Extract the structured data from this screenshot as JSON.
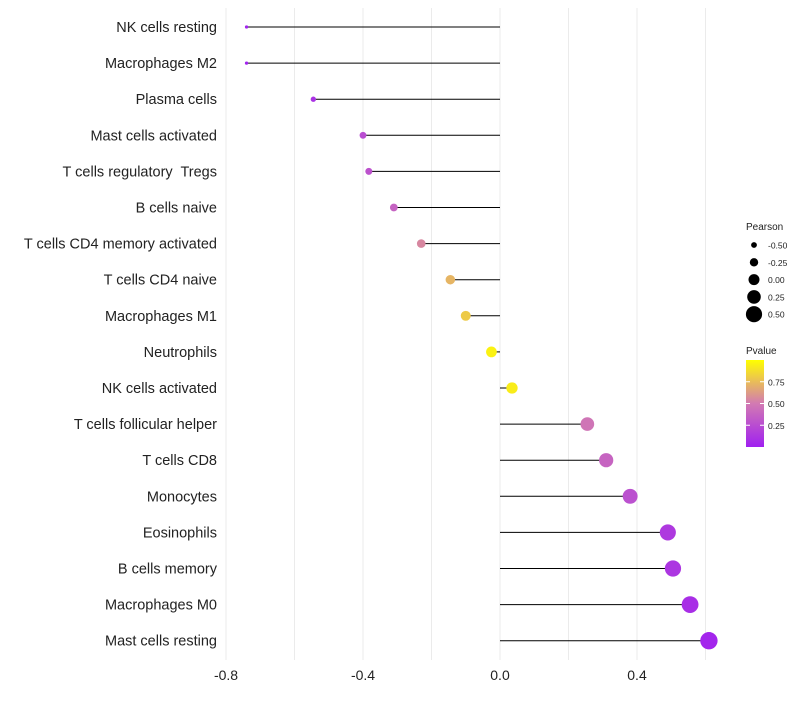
{
  "chart_data": {
    "type": "lollipop",
    "title": "",
    "xlabel": "",
    "ylabel": "",
    "xlim": [
      -0.8,
      0.6
    ],
    "x_ticks": [
      -0.8,
      -0.4,
      0.0,
      0.4
    ],
    "x_tick_labels": [
      "-0.8",
      "-0.4",
      "0.0",
      "0.4"
    ],
    "grid": true,
    "points": [
      {
        "category": "NK cells resting",
        "pearson": -0.74,
        "pvalue": 0.02
      },
      {
        "category": "Macrophages M2",
        "pearson": -0.74,
        "pvalue": 0.02
      },
      {
        "category": "Plasma cells",
        "pearson": -0.545,
        "pvalue": 0.1
      },
      {
        "category": "Mast cells activated",
        "pearson": -0.4,
        "pvalue": 0.25
      },
      {
        "category": "T cells regulatory  Tregs",
        "pearson": -0.383,
        "pvalue": 0.28
      },
      {
        "category": "B cells naive",
        "pearson": -0.31,
        "pvalue": 0.37
      },
      {
        "category": "T cells CD4 memory activated",
        "pearson": -0.23,
        "pvalue": 0.55
      },
      {
        "category": "T cells CD4 naive",
        "pearson": -0.145,
        "pvalue": 0.72
      },
      {
        "category": "Macrophages M1",
        "pearson": -0.1,
        "pvalue": 0.8
      },
      {
        "category": "Neutrophils",
        "pearson": -0.025,
        "pvalue": 0.95
      },
      {
        "category": "NK cells activated",
        "pearson": 0.035,
        "pvalue": 0.93
      },
      {
        "category": "T cells follicular helper",
        "pearson": 0.255,
        "pvalue": 0.47
      },
      {
        "category": "T cells CD8",
        "pearson": 0.31,
        "pvalue": 0.38
      },
      {
        "category": "Monocytes",
        "pearson": 0.38,
        "pvalue": 0.27
      },
      {
        "category": "Eosinophils",
        "pearson": 0.49,
        "pvalue": 0.14
      },
      {
        "category": "B cells memory",
        "pearson": 0.505,
        "pvalue": 0.12
      },
      {
        "category": "Macrophages M0",
        "pearson": 0.555,
        "pvalue": 0.08
      },
      {
        "category": "Mast cells resting",
        "pearson": 0.61,
        "pvalue": 0.03
      }
    ],
    "legend_size": {
      "title": "Pearson",
      "labels": [
        "-0.50",
        "-0.25",
        "0.00",
        "0.25",
        "0.50"
      ],
      "values": [
        -0.5,
        -0.25,
        0.0,
        0.25,
        0.5
      ]
    },
    "legend_color": {
      "title": "Pvalue",
      "labels": [
        "0.75",
        "0.50",
        "0.25"
      ],
      "values": [
        0.75,
        0.5,
        0.25
      ],
      "range": [
        0.0,
        1.0
      ]
    },
    "colors": {
      "low": "#a020f0",
      "mid": "#d27ab2",
      "high": "#ffff00",
      "stem": "#000000",
      "grid": "#ebebeb"
    }
  }
}
